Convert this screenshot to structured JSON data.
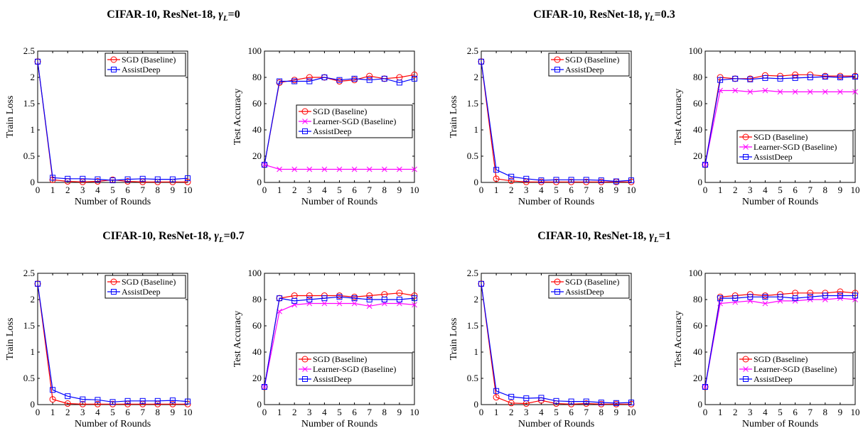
{
  "colors": {
    "sgd": "#ff0000",
    "learner": "#ff00ff",
    "assist": "#0000ff",
    "axis": "#000000"
  },
  "groups": [
    {
      "title": "CIFAR-10, ResNet-18, γL=0"
    },
    {
      "title": "CIFAR-10, ResNet-18, γL=0.3"
    },
    {
      "title": "CIFAR-10, ResNet-18, γL=0.7"
    },
    {
      "title": "CIFAR-10, ResNet-18, γL=1"
    }
  ],
  "chart_data": [
    {
      "type": "line",
      "group": 0,
      "metric": "loss",
      "xlabel": "Number of Rounds",
      "ylabel": "Train Loss",
      "xlim": [
        0,
        10
      ],
      "ylim": [
        0,
        2.5
      ],
      "xticks": [
        "0",
        "1",
        "2",
        "3",
        "4",
        "5",
        "6",
        "7",
        "8",
        "9",
        "10"
      ],
      "yticks": [
        "0",
        "0.5",
        "1",
        "1.5",
        "2",
        "2.5"
      ],
      "x": [
        0,
        1,
        2,
        3,
        4,
        5,
        6,
        7,
        8,
        9,
        10
      ],
      "legend_position": "top-right",
      "series": [
        {
          "name": "SGD (Baseline)",
          "key": "sgd",
          "marker": "circle",
          "values": [
            2.3,
            0.05,
            0.02,
            0.01,
            0.02,
            0.05,
            0.02,
            0.01,
            0.01,
            0.01,
            0.01
          ]
        },
        {
          "name": "AssistDeep",
          "key": "assist",
          "marker": "square",
          "values": [
            2.3,
            0.09,
            0.07,
            0.07,
            0.06,
            0.04,
            0.06,
            0.07,
            0.06,
            0.06,
            0.08
          ]
        }
      ]
    },
    {
      "type": "line",
      "group": 0,
      "metric": "acc",
      "xlabel": "Number of Rounds",
      "ylabel": "Test Accuracy",
      "xlim": [
        0,
        10
      ],
      "ylim": [
        0,
        100
      ],
      "xticks": [
        "0",
        "1",
        "2",
        "3",
        "4",
        "5",
        "6",
        "7",
        "8",
        "9",
        "10"
      ],
      "yticks": [
        "0",
        "20",
        "40",
        "60",
        "80",
        "100"
      ],
      "x": [
        0,
        1,
        2,
        3,
        4,
        5,
        6,
        7,
        8,
        9,
        10
      ],
      "legend_position": "middle-right",
      "series": [
        {
          "name": "SGD (Baseline)",
          "key": "sgd",
          "marker": "circle",
          "values": [
            13.5,
            76,
            78,
            80,
            80,
            77,
            78,
            81,
            79,
            80,
            82
          ]
        },
        {
          "name": "Learner-SGD (Baseline)",
          "key": "learner",
          "marker": "x",
          "values": [
            13.5,
            10,
            10,
            10,
            10,
            10,
            10,
            10,
            10,
            10,
            10
          ]
        },
        {
          "name": "AssistDeep",
          "key": "assist",
          "marker": "square",
          "values": [
            13.5,
            77,
            77,
            77,
            80,
            78,
            79,
            78,
            79,
            76,
            79
          ]
        }
      ]
    },
    {
      "type": "line",
      "group": 1,
      "metric": "loss",
      "xlabel": "Number of Rounds",
      "ylabel": "Train Loss",
      "xlim": [
        0,
        10
      ],
      "ylim": [
        0,
        2.5
      ],
      "xticks": [
        "0",
        "1",
        "2",
        "3",
        "4",
        "5",
        "6",
        "7",
        "8",
        "9",
        "10"
      ],
      "yticks": [
        "0",
        "0.5",
        "1",
        "1.5",
        "2",
        "2.5"
      ],
      "x": [
        0,
        1,
        2,
        3,
        4,
        5,
        6,
        7,
        8,
        9,
        10
      ],
      "legend_position": "top-right",
      "series": [
        {
          "name": "SGD (Baseline)",
          "key": "sgd",
          "marker": "circle",
          "values": [
            2.3,
            0.07,
            0.03,
            0.01,
            0.01,
            0.01,
            0.01,
            0.01,
            0.01,
            0.01,
            0.01
          ]
        },
        {
          "name": "AssistDeep",
          "key": "assist",
          "marker": "square",
          "values": [
            2.3,
            0.24,
            0.11,
            0.07,
            0.04,
            0.05,
            0.05,
            0.05,
            0.04,
            0.02,
            0.04
          ]
        }
      ]
    },
    {
      "type": "line",
      "group": 1,
      "metric": "acc",
      "xlabel": "Number of Rounds",
      "ylabel": "Test Accuracy",
      "xlim": [
        0,
        10
      ],
      "ylim": [
        0,
        100
      ],
      "xticks": [
        "0",
        "1",
        "2",
        "3",
        "4",
        "5",
        "6",
        "7",
        "8",
        "9",
        "10"
      ],
      "yticks": [
        "0",
        "20",
        "40",
        "60",
        "80",
        "100"
      ],
      "x": [
        0,
        1,
        2,
        3,
        4,
        5,
        6,
        7,
        8,
        9,
        10
      ],
      "legend_position": "bottom-right",
      "series": [
        {
          "name": "SGD (Baseline)",
          "key": "sgd",
          "marker": "circle",
          "values": [
            13.5,
            80,
            79,
            79,
            81.5,
            81,
            82,
            82,
            81,
            81,
            81
          ]
        },
        {
          "name": "Learner-SGD (Baseline)",
          "key": "learner",
          "marker": "x",
          "values": [
            13.5,
            70,
            70,
            69,
            70,
            69,
            69,
            69,
            69,
            69,
            69
          ]
        },
        {
          "name": "AssistDeep",
          "key": "assist",
          "marker": "square",
          "values": [
            13.5,
            78,
            79,
            78.5,
            79.5,
            79,
            79.5,
            80,
            80.5,
            80,
            80.5
          ]
        }
      ]
    },
    {
      "type": "line",
      "group": 2,
      "metric": "loss",
      "xlabel": "Number of Rounds",
      "ylabel": "Train Loss",
      "xlim": [
        0,
        10
      ],
      "ylim": [
        0,
        2.5
      ],
      "xticks": [
        "0",
        "1",
        "2",
        "3",
        "4",
        "5",
        "6",
        "7",
        "8",
        "9",
        "10"
      ],
      "yticks": [
        "0",
        "0.5",
        "1",
        "1.5",
        "2",
        "2.5"
      ],
      "x": [
        0,
        1,
        2,
        3,
        4,
        5,
        6,
        7,
        8,
        9,
        10
      ],
      "legend_position": "top-right",
      "series": [
        {
          "name": "SGD (Baseline)",
          "key": "sgd",
          "marker": "circle",
          "values": [
            2.3,
            0.1,
            0.02,
            0.01,
            0.01,
            0.01,
            0.01,
            0.01,
            0.01,
            0.01,
            0.01
          ]
        },
        {
          "name": "AssistDeep",
          "key": "assist",
          "marker": "square",
          "values": [
            2.3,
            0.28,
            0.16,
            0.1,
            0.09,
            0.05,
            0.07,
            0.07,
            0.07,
            0.08,
            0.06
          ]
        }
      ]
    },
    {
      "type": "line",
      "group": 2,
      "metric": "acc",
      "xlabel": "Number of Rounds",
      "ylabel": "Test Accuracy",
      "xlim": [
        0,
        10
      ],
      "ylim": [
        0,
        100
      ],
      "xticks": [
        "0",
        "1",
        "2",
        "3",
        "4",
        "5",
        "6",
        "7",
        "8",
        "9",
        "10"
      ],
      "yticks": [
        "0",
        "20",
        "40",
        "60",
        "80",
        "100"
      ],
      "x": [
        0,
        1,
        2,
        3,
        4,
        5,
        6,
        7,
        8,
        9,
        10
      ],
      "legend_position": "bottom-right",
      "series": [
        {
          "name": "SGD (Baseline)",
          "key": "sgd",
          "marker": "circle",
          "values": [
            13.5,
            81,
            83,
            83,
            83,
            83,
            82,
            83,
            84,
            85,
            83
          ]
        },
        {
          "name": "Learner-SGD (Baseline)",
          "key": "learner",
          "marker": "x",
          "values": [
            13.5,
            71,
            76,
            77,
            77,
            77,
            77,
            75,
            77,
            77,
            76
          ]
        },
        {
          "name": "AssistDeep",
          "key": "assist",
          "marker": "square",
          "values": [
            13.5,
            81,
            79,
            80,
            81,
            82,
            81,
            80,
            80,
            80,
            81
          ]
        }
      ]
    },
    {
      "type": "line",
      "group": 3,
      "metric": "loss",
      "xlabel": "Number of Rounds",
      "ylabel": "Train Loss",
      "xlim": [
        0,
        10
      ],
      "ylim": [
        0,
        2.5
      ],
      "xticks": [
        "0",
        "1",
        "2",
        "3",
        "4",
        "5",
        "6",
        "7",
        "8",
        "9",
        "10"
      ],
      "yticks": [
        "0",
        "0.5",
        "1",
        "1.5",
        "2",
        "2.5"
      ],
      "x": [
        0,
        1,
        2,
        3,
        4,
        5,
        6,
        7,
        8,
        9,
        10
      ],
      "legend_position": "top-right",
      "series": [
        {
          "name": "SGD (Baseline)",
          "key": "sgd",
          "marker": "circle",
          "values": [
            2.3,
            0.14,
            0.03,
            0.02,
            0.08,
            0.02,
            0.01,
            0.02,
            0.01,
            0.01,
            0.01
          ]
        },
        {
          "name": "AssistDeep",
          "key": "assist",
          "marker": "square",
          "values": [
            2.3,
            0.26,
            0.15,
            0.12,
            0.13,
            0.07,
            0.06,
            0.06,
            0.04,
            0.03,
            0.04
          ]
        }
      ]
    },
    {
      "type": "line",
      "group": 3,
      "metric": "acc",
      "xlabel": "Number of Rounds",
      "ylabel": "Test Accuracy",
      "xlim": [
        0,
        10
      ],
      "ylim": [
        0,
        100
      ],
      "xticks": [
        "0",
        "1",
        "2",
        "3",
        "4",
        "5",
        "6",
        "7",
        "8",
        "9",
        "10"
      ],
      "yticks": [
        "0",
        "20",
        "40",
        "60",
        "80",
        "100"
      ],
      "x": [
        0,
        1,
        2,
        3,
        4,
        5,
        6,
        7,
        8,
        9,
        10
      ],
      "legend_position": "bottom-right",
      "series": [
        {
          "name": "SGD (Baseline)",
          "key": "sgd",
          "marker": "circle",
          "values": [
            13.5,
            82,
            83,
            84,
            83,
            84,
            85,
            85,
            85,
            86,
            85
          ]
        },
        {
          "name": "Learner-SGD (Baseline)",
          "key": "learner",
          "marker": "x",
          "values": [
            13.5,
            77,
            78,
            79,
            77,
            79,
            79,
            80,
            80,
            81,
            80
          ]
        },
        {
          "name": "AssistDeep",
          "key": "assist",
          "marker": "square",
          "values": [
            13.5,
            81,
            81,
            82,
            82,
            82,
            81,
            82,
            83,
            83,
            83
          ]
        }
      ]
    }
  ]
}
